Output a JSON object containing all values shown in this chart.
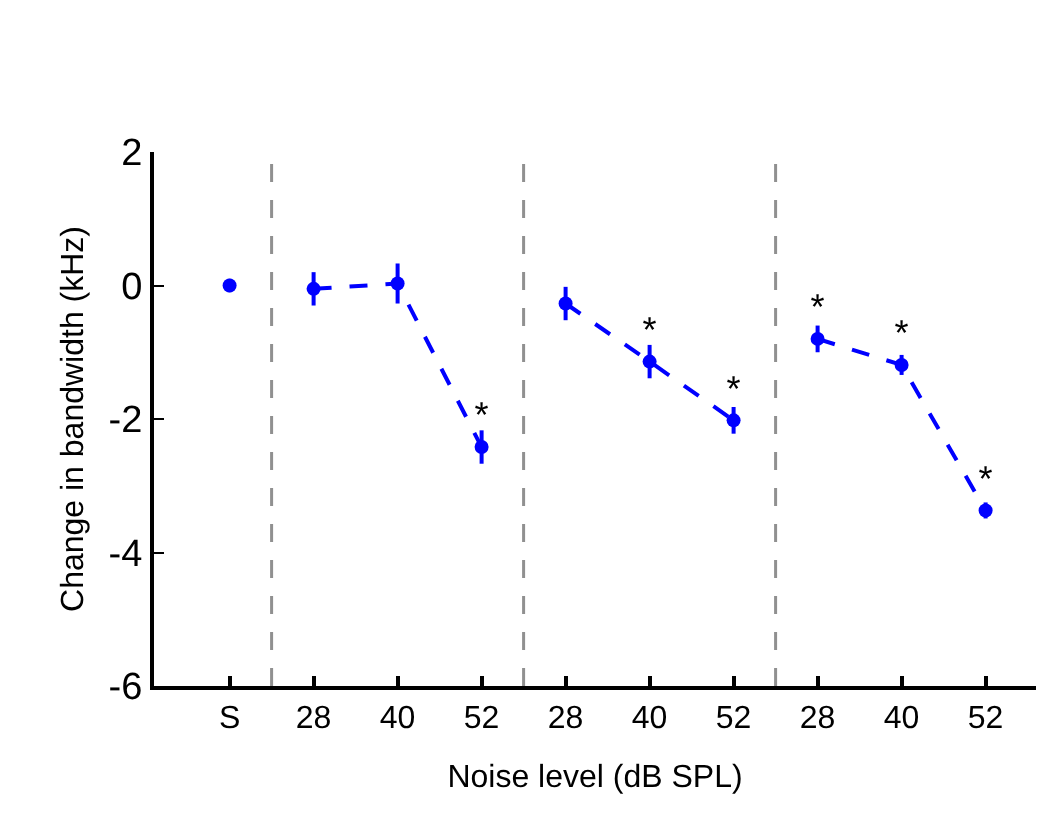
{
  "chart_data": {
    "type": "line",
    "xlabel": "Noise level (dB SPL)",
    "ylabel": "Change in bandwidth (kHz)",
    "categories": [
      "S",
      "28",
      "40",
      "52",
      "28",
      "40",
      "52",
      "28",
      "40",
      "52"
    ],
    "ylim": [
      -6,
      2
    ],
    "yticks": [
      -6,
      -4,
      -2,
      0,
      2
    ],
    "marker": "circle",
    "line_style": "dashed",
    "series": [
      {
        "type": "scatter",
        "color": "#0000ff",
        "values": [
          0,
          null,
          null,
          null,
          null,
          null,
          null,
          null,
          null,
          null
        ],
        "errors": [
          0.1,
          null,
          null,
          null,
          null,
          null,
          null,
          null,
          null,
          null
        ]
      },
      {
        "color": "#0000ff",
        "values": [
          null,
          -0.05,
          0.03,
          -2.42,
          null,
          null,
          null,
          null,
          null,
          null
        ],
        "errors": [
          null,
          0.25,
          0.3,
          0.25,
          null,
          null,
          null,
          null,
          null,
          null
        ],
        "value_labels": [
          null,
          null,
          null,
          "*",
          null,
          null,
          null,
          null,
          null,
          null
        ]
      },
      {
        "color": "#0000ff",
        "values": [
          null,
          null,
          null,
          null,
          -0.27,
          -1.14,
          -2.02,
          null,
          null,
          null
        ],
        "errors": [
          null,
          null,
          null,
          null,
          0.25,
          0.25,
          0.2,
          null,
          null,
          null
        ],
        "value_labels": [
          null,
          null,
          null,
          null,
          null,
          "*",
          "*",
          null,
          null,
          null
        ]
      },
      {
        "color": "#0000ff",
        "values": [
          null,
          null,
          null,
          null,
          null,
          null,
          null,
          -0.8,
          -1.19,
          -3.37
        ],
        "errors": [
          null,
          null,
          null,
          null,
          null,
          null,
          null,
          0.2,
          0.15,
          0.12
        ],
        "value_labels": [
          null,
          null,
          null,
          null,
          null,
          null,
          null,
          "*",
          "*",
          "*"
        ]
      }
    ]
  }
}
